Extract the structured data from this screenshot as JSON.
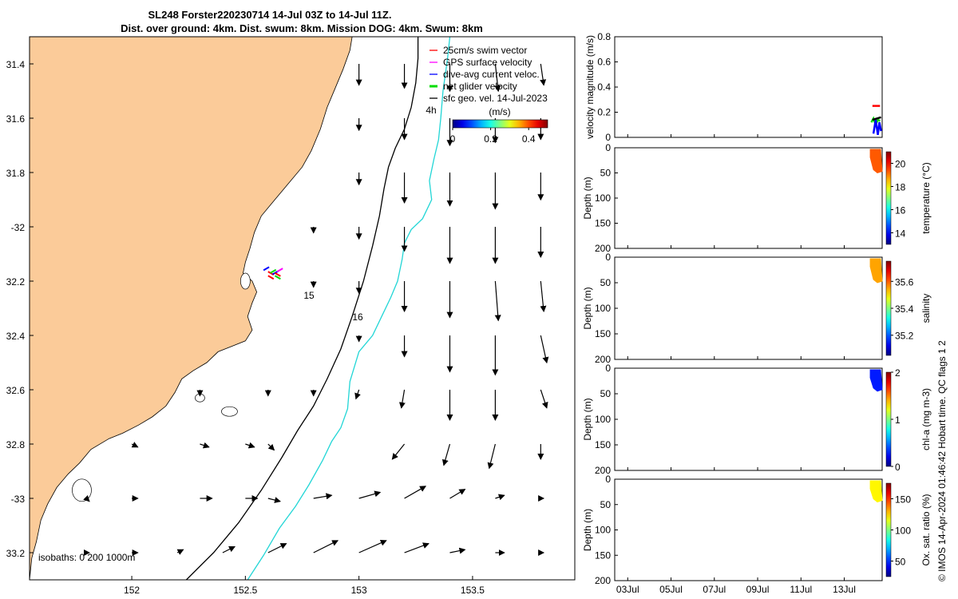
{
  "title": {
    "line1": "SL248 Forster220230714 14-Jul 03Z to 14-Jul 11Z.",
    "line2": "Dist. over ground: 4km. Dist. swum: 8km. Mission DOG: 4km. Swum: 8km"
  },
  "credit": "© IMOS 14-Apr-2024 01:46:42 Hobart time. QC flags 1  2",
  "colors": {
    "land": "#fbcb99",
    "ocean": "#ffffff",
    "isobath_200": "#000000",
    "isobath_1000": "#22d6d6",
    "swim_vector": "#ff0000",
    "gps_surface": "#ff00ff",
    "dive_avg": "#0000ff",
    "net_glider": "#00dd00",
    "sfc_geo": "#000000",
    "temperature_patch": "#f5a623",
    "salinity_patch": "#f7a81b",
    "chla_patch": "#1e7ee0",
    "oxygen_patch": "#2ecc2e"
  },
  "chart_data": [
    {
      "type": "map",
      "name": "glider-track-map",
      "xlim": [
        151.55,
        153.95
      ],
      "ylim": [
        -33.3,
        -31.3
      ],
      "x_ticks": [
        152,
        152.5,
        153,
        153.5
      ],
      "x_tick_labels": [
        "152",
        "152.5",
        "153",
        "153.5"
      ],
      "y_ticks": [
        -31.4,
        -31.6,
        -31.8,
        -32,
        -32.2,
        -32.4,
        -32.6,
        -32.8,
        -33,
        -33.2
      ],
      "y_tick_labels": [
        "31.4",
        "31.6",
        "31.8",
        "-32",
        "32.2",
        "32.4",
        "32.6",
        "32.8",
        "-33",
        "33.2"
      ],
      "legend": {
        "position": "top-right",
        "entries": [
          {
            "label": "25cm/s swim vector",
            "color": "#ff0000"
          },
          {
            "label": "GPS surface velocity",
            "color": "#ff00ff"
          },
          {
            "label": "dive-avg current veloc.",
            "color": "#0000ff"
          },
          {
            "label": "net glider velocity",
            "color": "#00dd00"
          },
          {
            "label": "sfc geo. vel. 14-Jul-2023",
            "color": "#000000"
          }
        ]
      },
      "colorbar": {
        "label": "(m/s)",
        "ticks": [
          "0",
          "0.2",
          "0.4"
        ],
        "range": [
          0,
          0.5
        ]
      },
      "isobath_label": "isobaths: 0   200  1000m",
      "annotations": [
        "4h",
        "15",
        "16"
      ],
      "coastline": [
        [
          151.55,
          -33.3
        ],
        [
          151.56,
          -33.22
        ],
        [
          151.58,
          -33.16
        ],
        [
          151.6,
          -33.08
        ],
        [
          151.63,
          -33.02
        ],
        [
          151.67,
          -32.96
        ],
        [
          151.72,
          -32.91
        ],
        [
          151.77,
          -32.87
        ],
        [
          151.82,
          -32.82
        ],
        [
          151.9,
          -32.78
        ],
        [
          151.96,
          -32.76
        ],
        [
          152.03,
          -32.73
        ],
        [
          152.09,
          -32.7
        ],
        [
          152.15,
          -32.66
        ],
        [
          152.19,
          -32.61
        ],
        [
          152.22,
          -32.56
        ],
        [
          152.27,
          -32.53
        ],
        [
          152.33,
          -32.5
        ],
        [
          152.38,
          -32.46
        ],
        [
          152.44,
          -32.44
        ],
        [
          152.5,
          -32.42
        ],
        [
          152.53,
          -32.38
        ],
        [
          152.51,
          -32.33
        ],
        [
          152.53,
          -32.28
        ],
        [
          152.55,
          -32.24
        ],
        [
          152.53,
          -32.2
        ],
        [
          152.49,
          -32.17
        ],
        [
          152.5,
          -32.13
        ],
        [
          152.52,
          -32.08
        ],
        [
          152.54,
          -32.02
        ],
        [
          152.57,
          -31.96
        ],
        [
          152.63,
          -31.9
        ],
        [
          152.69,
          -31.84
        ],
        [
          152.75,
          -31.78
        ],
        [
          152.79,
          -31.72
        ],
        [
          152.83,
          -31.64
        ],
        [
          152.86,
          -31.56
        ],
        [
          152.9,
          -31.48
        ],
        [
          152.93,
          -31.42
        ],
        [
          152.96,
          -31.35
        ],
        [
          152.97,
          -31.3
        ]
      ],
      "isobath_200": [
        [
          152.24,
          -33.3
        ],
        [
          152.36,
          -33.2
        ],
        [
          152.47,
          -33.09
        ],
        [
          152.57,
          -32.97
        ],
        [
          152.66,
          -32.85
        ],
        [
          152.73,
          -32.75
        ],
        [
          152.8,
          -32.66
        ],
        [
          152.86,
          -32.56
        ],
        [
          152.92,
          -32.45
        ],
        [
          152.97,
          -32.33
        ],
        [
          153.02,
          -32.2
        ],
        [
          153.06,
          -32.07
        ],
        [
          153.09,
          -31.96
        ],
        [
          153.11,
          -31.86
        ],
        [
          153.13,
          -31.78
        ],
        [
          153.16,
          -31.71
        ],
        [
          153.2,
          -31.64
        ],
        [
          153.23,
          -31.56
        ],
        [
          153.25,
          -31.47
        ],
        [
          153.26,
          -31.38
        ],
        [
          153.26,
          -31.3
        ]
      ],
      "isobath_1000": [
        [
          152.51,
          -33.3
        ],
        [
          152.58,
          -33.21
        ],
        [
          152.65,
          -33.11
        ],
        [
          152.72,
          -33.03
        ],
        [
          152.78,
          -32.95
        ],
        [
          152.84,
          -32.86
        ],
        [
          152.88,
          -32.79
        ],
        [
          152.92,
          -32.74
        ],
        [
          152.95,
          -32.67
        ],
        [
          152.96,
          -32.57
        ],
        [
          153.0,
          -32.46
        ],
        [
          153.06,
          -32.4
        ],
        [
          153.1,
          -32.33
        ],
        [
          153.14,
          -32.26
        ],
        [
          153.17,
          -32.2
        ],
        [
          153.19,
          -32.12
        ],
        [
          153.2,
          -32.06
        ],
        [
          153.23,
          -32.01
        ],
        [
          153.28,
          -31.97
        ],
        [
          153.32,
          -31.9
        ],
        [
          153.31,
          -31.83
        ],
        [
          153.33,
          -31.75
        ],
        [
          153.35,
          -31.68
        ],
        [
          153.36,
          -31.6
        ],
        [
          153.37,
          -31.5
        ],
        [
          153.39,
          -31.38
        ],
        [
          153.4,
          -31.3
        ]
      ],
      "glider_track": [
        [
          152.58,
          -32.16
        ],
        [
          152.6,
          -32.165
        ],
        [
          152.61,
          -32.17
        ],
        [
          152.6,
          -32.18
        ],
        [
          152.62,
          -32.175
        ],
        [
          152.63,
          -32.17
        ],
        [
          152.64,
          -32.165
        ],
        [
          152.63,
          -32.18
        ]
      ],
      "current_vectors": [
        {
          "lon": 153.0,
          "lat": -31.4,
          "u": 0.0,
          "v": -0.07
        },
        {
          "lon": 153.2,
          "lat": -31.4,
          "u": 0.0,
          "v": -0.08
        },
        {
          "lon": 153.4,
          "lat": -31.4,
          "u": 0.0,
          "v": -0.09
        },
        {
          "lon": 153.6,
          "lat": -31.4,
          "u": 0.01,
          "v": -0.09
        },
        {
          "lon": 153.8,
          "lat": -31.4,
          "u": 0.01,
          "v": -0.07
        },
        {
          "lon": 153.0,
          "lat": -31.6,
          "u": 0.0,
          "v": -0.04
        },
        {
          "lon": 153.2,
          "lat": -31.6,
          "u": 0.0,
          "v": -0.07
        },
        {
          "lon": 153.4,
          "lat": -31.6,
          "u": 0.0,
          "v": -0.09
        },
        {
          "lon": 153.6,
          "lat": -31.6,
          "u": 0.0,
          "v": -0.08
        },
        {
          "lon": 153.8,
          "lat": -31.6,
          "u": 0.0,
          "v": -0.07
        },
        {
          "lon": 153.0,
          "lat": -31.8,
          "u": 0.0,
          "v": -0.04
        },
        {
          "lon": 153.2,
          "lat": -31.8,
          "u": 0.0,
          "v": -0.1
        },
        {
          "lon": 153.4,
          "lat": -31.8,
          "u": 0.0,
          "v": -0.11
        },
        {
          "lon": 153.6,
          "lat": -31.8,
          "u": 0.0,
          "v": -0.12
        },
        {
          "lon": 153.8,
          "lat": -31.8,
          "u": 0.0,
          "v": -0.09
        },
        {
          "lon": 152.8,
          "lat": -32.0,
          "u": 0.0,
          "v": -0.02
        },
        {
          "lon": 153.0,
          "lat": -32.0,
          "u": 0.0,
          "v": -0.04
        },
        {
          "lon": 153.2,
          "lat": -32.0,
          "u": 0.0,
          "v": -0.08
        },
        {
          "lon": 153.4,
          "lat": -32.0,
          "u": 0.0,
          "v": -0.12
        },
        {
          "lon": 153.6,
          "lat": -32.0,
          "u": 0.0,
          "v": -0.12
        },
        {
          "lon": 153.8,
          "lat": -32.0,
          "u": 0.0,
          "v": -0.1
        },
        {
          "lon": 152.8,
          "lat": -32.2,
          "u": 0.0,
          "v": -0.02
        },
        {
          "lon": 153.0,
          "lat": -32.2,
          "u": 0.0,
          "v": -0.04
        },
        {
          "lon": 153.2,
          "lat": -32.2,
          "u": 0.0,
          "v": -0.1
        },
        {
          "lon": 153.4,
          "lat": -32.2,
          "u": 0.0,
          "v": -0.12
        },
        {
          "lon": 153.6,
          "lat": -32.2,
          "u": 0.01,
          "v": -0.13
        },
        {
          "lon": 153.8,
          "lat": -32.2,
          "u": 0.01,
          "v": -0.1
        },
        {
          "lon": 153.0,
          "lat": -32.4,
          "u": 0.0,
          "v": -0.02
        },
        {
          "lon": 153.2,
          "lat": -32.4,
          "u": 0.0,
          "v": -0.07
        },
        {
          "lon": 153.4,
          "lat": -32.4,
          "u": 0.0,
          "v": -0.12
        },
        {
          "lon": 153.6,
          "lat": -32.4,
          "u": 0.0,
          "v": -0.13
        },
        {
          "lon": 153.8,
          "lat": -32.4,
          "u": 0.02,
          "v": -0.09
        },
        {
          "lon": 152.3,
          "lat": -32.6,
          "u": 0.0,
          "v": -0.02
        },
        {
          "lon": 152.6,
          "lat": -32.6,
          "u": 0.0,
          "v": -0.02
        },
        {
          "lon": 152.8,
          "lat": -32.6,
          "u": 0.0,
          "v": -0.02
        },
        {
          "lon": 153.0,
          "lat": -32.6,
          "u": -0.01,
          "v": -0.03
        },
        {
          "lon": 153.2,
          "lat": -32.6,
          "u": -0.01,
          "v": -0.06
        },
        {
          "lon": 153.4,
          "lat": -32.6,
          "u": 0.0,
          "v": -0.1
        },
        {
          "lon": 153.6,
          "lat": -32.6,
          "u": 0.0,
          "v": -0.1
        },
        {
          "lon": 153.8,
          "lat": -32.6,
          "u": 0.02,
          "v": -0.06
        },
        {
          "lon": 152.0,
          "lat": -32.8,
          "u": 0.02,
          "v": -0.01
        },
        {
          "lon": 152.3,
          "lat": -32.8,
          "u": 0.03,
          "v": -0.01
        },
        {
          "lon": 152.5,
          "lat": -32.8,
          "u": 0.03,
          "v": -0.01
        },
        {
          "lon": 152.6,
          "lat": -32.8,
          "u": 0.02,
          "v": -0.02
        },
        {
          "lon": 153.2,
          "lat": -32.8,
          "u": -0.04,
          "v": -0.05
        },
        {
          "lon": 153.4,
          "lat": -32.8,
          "u": -0.02,
          "v": -0.07
        },
        {
          "lon": 153.6,
          "lat": -32.8,
          "u": -0.02,
          "v": -0.08
        },
        {
          "lon": 153.8,
          "lat": -32.8,
          "u": 0.0,
          "v": -0.05
        },
        {
          "lon": 151.8,
          "lat": -33.0,
          "u": 0.01,
          "v": -0.01
        },
        {
          "lon": 152.0,
          "lat": -33.0,
          "u": 0.02,
          "v": 0.0
        },
        {
          "lon": 152.3,
          "lat": -33.0,
          "u": 0.04,
          "v": 0.0
        },
        {
          "lon": 152.5,
          "lat": -33.0,
          "u": 0.04,
          "v": 0.0
        },
        {
          "lon": 152.6,
          "lat": -33.0,
          "u": 0.04,
          "v": -0.01
        },
        {
          "lon": 152.8,
          "lat": -33.0,
          "u": 0.06,
          "v": 0.01
        },
        {
          "lon": 153.0,
          "lat": -33.0,
          "u": 0.07,
          "v": 0.02
        },
        {
          "lon": 153.2,
          "lat": -33.0,
          "u": 0.07,
          "v": 0.04
        },
        {
          "lon": 153.4,
          "lat": -33.0,
          "u": 0.05,
          "v": 0.03
        },
        {
          "lon": 153.6,
          "lat": -33.0,
          "u": 0.03,
          "v": 0.01
        },
        {
          "lon": 153.8,
          "lat": -33.0,
          "u": 0.01,
          "v": 0.0
        },
        {
          "lon": 151.8,
          "lat": -33.2,
          "u": 0.01,
          "v": 0.0
        },
        {
          "lon": 152.0,
          "lat": -33.2,
          "u": 0.02,
          "v": 0.0
        },
        {
          "lon": 152.2,
          "lat": -33.2,
          "u": 0.02,
          "v": 0.01
        },
        {
          "lon": 152.4,
          "lat": -33.2,
          "u": 0.04,
          "v": 0.02
        },
        {
          "lon": 152.6,
          "lat": -33.2,
          "u": 0.06,
          "v": 0.03
        },
        {
          "lon": 152.8,
          "lat": -33.2,
          "u": 0.08,
          "v": 0.04
        },
        {
          "lon": 153.0,
          "lat": -33.2,
          "u": 0.09,
          "v": 0.04
        },
        {
          "lon": 153.2,
          "lat": -33.2,
          "u": 0.08,
          "v": 0.03
        },
        {
          "lon": 153.4,
          "lat": -33.2,
          "u": 0.05,
          "v": 0.01
        },
        {
          "lon": 153.6,
          "lat": -33.2,
          "u": 0.03,
          "v": 0.0
        },
        {
          "lon": 153.8,
          "lat": -33.2,
          "u": 0.01,
          "v": 0.0
        }
      ]
    },
    {
      "type": "line",
      "name": "velocity-magnitude",
      "ylabel": "velocity magnitude (m/s)",
      "ylim": [
        0,
        0.8
      ],
      "y_ticks": [
        "0",
        "0.2",
        "0.4",
        "0.6",
        "0.8"
      ],
      "xlim_days": [
        2.4,
        14.75
      ],
      "series": [
        {
          "color": "#ff0000",
          "points": [
            [
              14.3,
              0.25
            ],
            [
              14.65,
              0.25
            ]
          ]
        },
        {
          "color": "#00dd00",
          "points": [
            [
              14.25,
              0.12
            ],
            [
              14.35,
              0.15
            ],
            [
              14.45,
              0.1
            ],
            [
              14.55,
              0.14
            ],
            [
              14.65,
              0.13
            ]
          ]
        },
        {
          "color": "#0000ff",
          "points": [
            [
              14.35,
              0.03
            ],
            [
              14.45,
              0.14
            ],
            [
              14.55,
              0.02
            ],
            [
              14.62,
              0.12
            ],
            [
              14.7,
              0.05
            ]
          ]
        },
        {
          "color": "#000000",
          "points": [
            [
              14.3,
              0.14
            ],
            [
              14.5,
              0.15
            ],
            [
              14.7,
              0.16
            ]
          ]
        }
      ]
    },
    {
      "type": "heatmap",
      "name": "temperature",
      "ylabel": "Depth (m)",
      "y_ticks": [
        "0",
        "50",
        "100",
        "150",
        "200"
      ],
      "ylim": [
        200,
        0
      ],
      "colorbar_label": "temperature (°C)",
      "colorbar_ticks": [
        "14",
        "16",
        "18",
        "20"
      ],
      "colorbar_range": [
        13,
        21
      ],
      "data": {
        "days": [
          14.2,
          14.75
        ],
        "depth": [
          0,
          50
        ],
        "value": 19.3
      }
    },
    {
      "type": "heatmap",
      "name": "salinity",
      "ylabel": "Depth (m)",
      "y_ticks": [
        "0",
        "50",
        "100",
        "150",
        "200"
      ],
      "ylim": [
        200,
        0
      ],
      "colorbar_label": "salinity",
      "colorbar_ticks": [
        "35.2",
        "35.4",
        "35.6"
      ],
      "colorbar_range": [
        35.05,
        35.75
      ],
      "data": {
        "days": [
          14.2,
          14.75
        ],
        "depth": [
          0,
          50
        ],
        "value": 35.55
      }
    },
    {
      "type": "heatmap",
      "name": "chlorophyll-a",
      "ylabel": "Depth (m)",
      "y_ticks": [
        "0",
        "50",
        "100",
        "150",
        "200"
      ],
      "ylim": [
        200,
        0
      ],
      "colorbar_label": "chl-a (mg m-3)",
      "colorbar_ticks": [
        "0",
        "1",
        "2"
      ],
      "colorbar_range": [
        0,
        2
      ],
      "data": {
        "days": [
          14.2,
          14.75
        ],
        "depth": [
          0,
          45
        ],
        "value": 0.3
      }
    },
    {
      "type": "heatmap",
      "name": "oxygen-saturation",
      "ylabel": "Depth (m)",
      "y_ticks": [
        "0",
        "50",
        "100",
        "150",
        "200"
      ],
      "ylim": [
        200,
        0
      ],
      "colorbar_label": "Ox. sat. ratio (%)",
      "colorbar_ticks": [
        "50",
        "100",
        "150"
      ],
      "colorbar_range": [
        25,
        175
      ],
      "data": {
        "days": [
          14.2,
          14.75
        ],
        "depth": [
          0,
          45
        ],
        "value": 120
      }
    }
  ],
  "time_axis": {
    "ticks": [
      3,
      5,
      7,
      9,
      11,
      13
    ],
    "labels": [
      "03Jul",
      "05Jul",
      "07Jul",
      "09Jul",
      "11Jul",
      "13Jul"
    ]
  }
}
